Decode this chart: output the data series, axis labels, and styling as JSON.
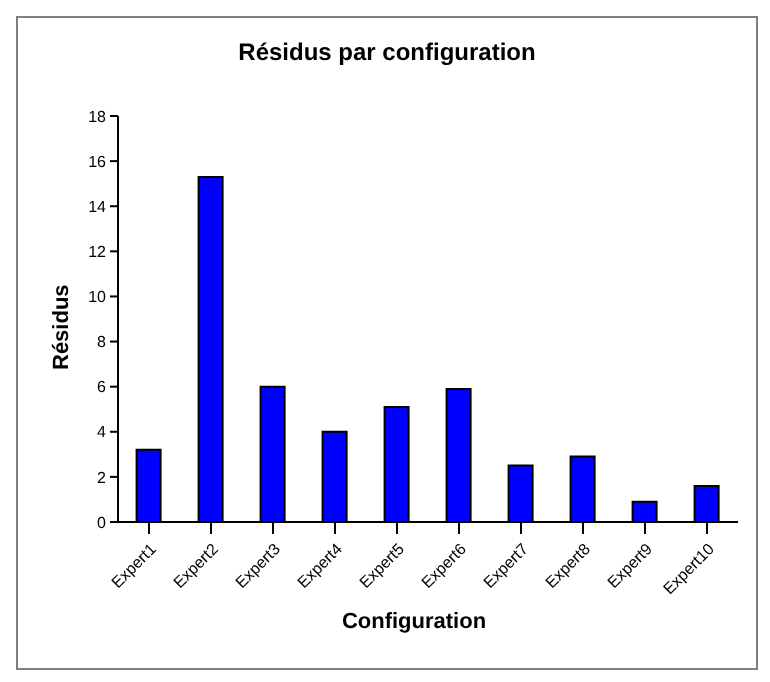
{
  "chart_data": {
    "type": "bar",
    "title": "Résidus par configuration",
    "xlabel": "Configuration",
    "ylabel": "Résidus",
    "categories": [
      "Expert1",
      "Expert2",
      "Expert3",
      "Expert4",
      "Expert5",
      "Expert6",
      "Expert7",
      "Expert8",
      "Expert9",
      "Expert10"
    ],
    "values": [
      3.2,
      15.3,
      6,
      4,
      5.1,
      5.9,
      2.5,
      2.9,
      0.9,
      1.6
    ],
    "color": "#0000ff",
    "ylim": [
      0,
      18
    ],
    "yticks": [
      0,
      2,
      4,
      6,
      8,
      10,
      12,
      14,
      16,
      18
    ],
    "grid": false,
    "legend": false
  }
}
